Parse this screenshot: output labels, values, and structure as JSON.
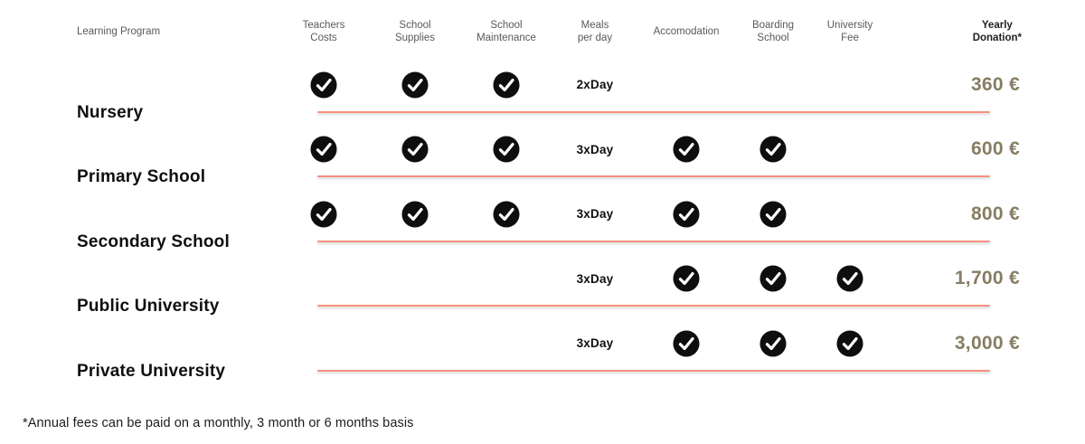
{
  "table": {
    "columns": [
      {
        "key": "program",
        "label": "Learning Program",
        "type": "label"
      },
      {
        "key": "teachers_costs",
        "label": "Teachers\nCosts",
        "type": "check"
      },
      {
        "key": "school_supplies",
        "label": "School\nSupplies",
        "type": "check"
      },
      {
        "key": "school_maintenance",
        "label": "School\nMaintenance",
        "type": "check"
      },
      {
        "key": "meals_per_day",
        "label": "Meals\nper day",
        "type": "text"
      },
      {
        "key": "accomodation",
        "label": "Accomodation",
        "type": "check"
      },
      {
        "key": "boarding_school",
        "label": "Boarding\nSchool",
        "type": "check"
      },
      {
        "key": "university_fee",
        "label": "University\nFee",
        "type": "check"
      },
      {
        "key": "yearly_donation",
        "label": "Yearly\nDonation*",
        "type": "money"
      }
    ],
    "rows": [
      {
        "program": "Nursery",
        "teachers_costs": true,
        "school_supplies": true,
        "school_maintenance": true,
        "meals_per_day": "2xDay",
        "accomodation": false,
        "boarding_school": false,
        "university_fee": false,
        "yearly_donation": "360 €"
      },
      {
        "program": "Primary School",
        "teachers_costs": true,
        "school_supplies": true,
        "school_maintenance": true,
        "meals_per_day": "3xDay",
        "accomodation": true,
        "boarding_school": true,
        "university_fee": false,
        "yearly_donation": "600 €"
      },
      {
        "program": "Secondary School",
        "teachers_costs": true,
        "school_supplies": true,
        "school_maintenance": true,
        "meals_per_day": "3xDay",
        "accomodation": true,
        "boarding_school": true,
        "university_fee": false,
        "yearly_donation": "800 €"
      },
      {
        "program": "Public University",
        "teachers_costs": false,
        "school_supplies": false,
        "school_maintenance": false,
        "meals_per_day": "3xDay",
        "accomodation": true,
        "boarding_school": true,
        "university_fee": true,
        "yearly_donation": "1,700 €"
      },
      {
        "program": "Private University",
        "teachers_costs": false,
        "school_supplies": false,
        "school_maintenance": false,
        "meals_per_day": "3xDay",
        "accomodation": true,
        "boarding_school": true,
        "university_fee": true,
        "yearly_donation": "3,000 €"
      }
    ]
  },
  "icons": {
    "check": "check-circle-icon"
  },
  "footnote": "*Annual fees can be paid on a monthly, 3 month or 6 months basis",
  "colors": {
    "row_line": "#f5907d",
    "donation_text": "#867d63",
    "header_text": "#58595b",
    "body_text": "#0f0f0f",
    "check_fill": "#0e0e0e",
    "check_mark": "#ffffff"
  },
  "chart_data": {
    "type": "table",
    "title": "",
    "columns": [
      "Learning Program",
      "Teachers Costs",
      "School Supplies",
      "School Maintenance",
      "Meals per day",
      "Accomodation",
      "Boarding School",
      "University Fee",
      "Yearly Donation*"
    ],
    "rows": [
      [
        "Nursery",
        true,
        true,
        true,
        "2xDay",
        false,
        false,
        false,
        "360 €"
      ],
      [
        "Primary School",
        true,
        true,
        true,
        "3xDay",
        true,
        true,
        false,
        "600 €"
      ],
      [
        "Secondary School",
        true,
        true,
        true,
        "3xDay",
        true,
        true,
        false,
        "800 €"
      ],
      [
        "Public University",
        false,
        false,
        false,
        "3xDay",
        true,
        true,
        true,
        "1,700 €"
      ],
      [
        "Private University",
        false,
        false,
        false,
        "3xDay",
        true,
        true,
        true,
        "3,000 €"
      ]
    ],
    "yearly_donation_values_eur": [
      360,
      600,
      800,
      1700,
      3000
    ],
    "footnote": "*Annual fees can be paid on a monthly, 3 month or 6 months basis",
    "legend_position": "none",
    "grid": "off"
  }
}
